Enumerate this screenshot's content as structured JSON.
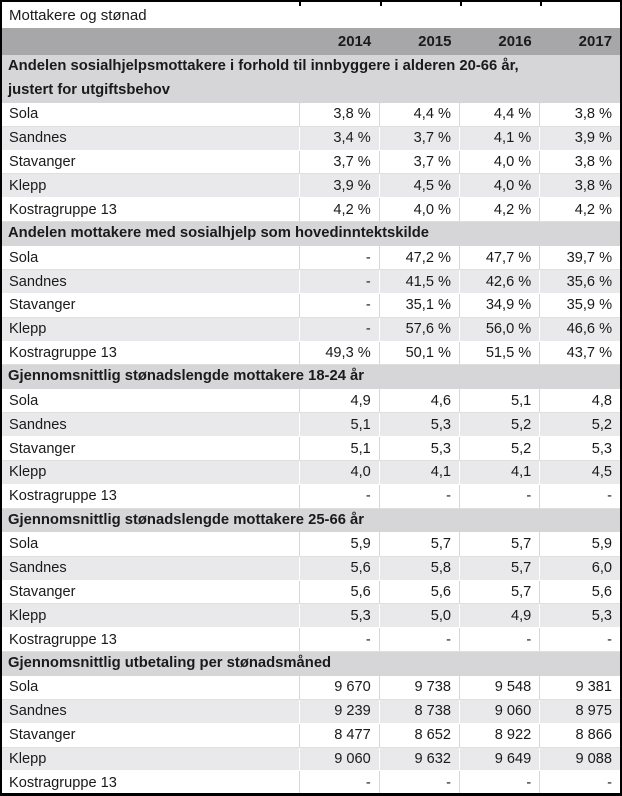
{
  "title": "Mottakere og stønad",
  "columns": [
    "2014",
    "2015",
    "2016",
    "2017"
  ],
  "colors": {
    "outer_border": "#000000",
    "year_header_bg": "#a7a7aa",
    "section_header_bg": "#d6d6d9",
    "alt_row_bg": "#e9e9ec",
    "grid_line": "#d7d7da",
    "text": "#1a1a1a"
  },
  "sections": [
    {
      "header": "Andelen sosialhjelpsmottakere i forhold til innbyggere i alderen 20-66 år,\njustert for utgiftsbehov",
      "rows": [
        {
          "label": "Sola",
          "values": [
            "3,8 %",
            "4,4 %",
            "4,4 %",
            "3,8 %"
          ]
        },
        {
          "label": "Sandnes",
          "values": [
            "3,4 %",
            "3,7 %",
            "4,1 %",
            "3,9 %"
          ]
        },
        {
          "label": "Stavanger",
          "values": [
            "3,7 %",
            "3,7 %",
            "4,0 %",
            "3,8 %"
          ]
        },
        {
          "label": "Klepp",
          "values": [
            "3,9 %",
            "4,5 %",
            "4,0 %",
            "3,8 %"
          ]
        },
        {
          "label": "Kostragruppe 13",
          "values": [
            "4,2 %",
            "4,0 %",
            "4,2 %",
            "4,2 %"
          ]
        }
      ]
    },
    {
      "header": "Andelen mottakere med sosialhjelp som hovedinntektskilde",
      "rows": [
        {
          "label": "Sola",
          "values": [
            "-",
            "47,2 %",
            "47,7 %",
            "39,7 %"
          ]
        },
        {
          "label": "Sandnes",
          "values": [
            "-",
            "41,5 %",
            "42,6 %",
            "35,6 %"
          ]
        },
        {
          "label": "Stavanger",
          "values": [
            "-",
            "35,1 %",
            "34,9 %",
            "35,9 %"
          ]
        },
        {
          "label": "Klepp",
          "values": [
            "-",
            "57,6 %",
            "56,0 %",
            "46,6 %"
          ]
        },
        {
          "label": "Kostragruppe 13",
          "values": [
            "49,3 %",
            "50,1 %",
            "51,5 %",
            "43,7 %"
          ]
        }
      ]
    },
    {
      "header": "Gjennomsnittlig stønadslengde mottakere 18-24 år",
      "rows": [
        {
          "label": "Sola",
          "values": [
            "4,9",
            "4,6",
            "5,1",
            "4,8"
          ]
        },
        {
          "label": "Sandnes",
          "values": [
            "5,1",
            "5,3",
            "5,2",
            "5,2"
          ]
        },
        {
          "label": "Stavanger",
          "values": [
            "5,1",
            "5,3",
            "5,2",
            "5,3"
          ]
        },
        {
          "label": "Klepp",
          "values": [
            "4,0",
            "4,1",
            "4,1",
            "4,5"
          ]
        },
        {
          "label": "Kostragruppe 13",
          "values": [
            "-",
            "-",
            "-",
            "-"
          ]
        }
      ]
    },
    {
      "header": "Gjennomsnittlig stønadslengde mottakere 25-66 år",
      "rows": [
        {
          "label": "Sola",
          "values": [
            "5,9",
            "5,7",
            "5,7",
            "5,9"
          ]
        },
        {
          "label": "Sandnes",
          "values": [
            "5,6",
            "5,8",
            "5,7",
            "6,0"
          ]
        },
        {
          "label": "Stavanger",
          "values": [
            "5,6",
            "5,6",
            "5,7",
            "5,6"
          ]
        },
        {
          "label": "Klepp",
          "values": [
            "5,3",
            "5,0",
            "4,9",
            "5,3"
          ]
        },
        {
          "label": "Kostragruppe 13",
          "values": [
            "-",
            "-",
            "-",
            "-"
          ]
        }
      ]
    },
    {
      "header": "Gjennomsnittlig utbetaling per stønadsmåned",
      "rows": [
        {
          "label": "Sola",
          "values": [
            "9 670",
            "9 738",
            "9 548",
            "9 381"
          ]
        },
        {
          "label": "Sandnes",
          "values": [
            "9 239",
            "8 738",
            "9 060",
            "8 975"
          ]
        },
        {
          "label": "Stavanger",
          "values": [
            "8 477",
            "8 652",
            "8 922",
            "8 866"
          ]
        },
        {
          "label": "Klepp",
          "values": [
            "9 060",
            "9 632",
            "9 649",
            "9 088"
          ]
        },
        {
          "label": "Kostragruppe 13",
          "values": [
            "-",
            "-",
            "-",
            "-"
          ]
        }
      ]
    }
  ]
}
